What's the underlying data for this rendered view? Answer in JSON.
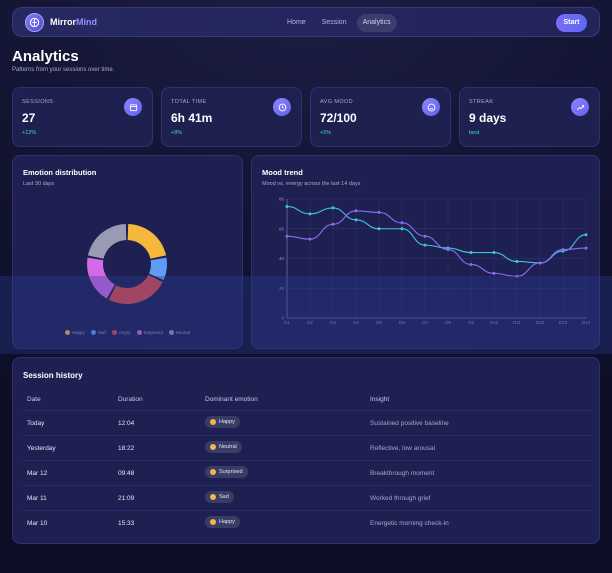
{
  "app": {
    "logo_first": "Mirror",
    "logo_second": "Mind"
  },
  "nav": {
    "items": [
      "Home",
      "Session",
      "Analytics"
    ],
    "active": "Analytics",
    "start_label": "Start"
  },
  "page": {
    "title": "Analytics",
    "subtitle": "Patterns from your sessions over time."
  },
  "stats": [
    {
      "label": "SESSIONS",
      "value": "27",
      "delta": "+12%",
      "icon": "calendar-icon"
    },
    {
      "label": "TOTAL TIME",
      "value": "6h 41m",
      "delta": "+8%",
      "icon": "clock-icon"
    },
    {
      "label": "AVG MOOD",
      "value": "72/100",
      "delta": "+5%",
      "icon": "smile-icon"
    },
    {
      "label": "STREAK",
      "value": "9 days",
      "delta": "best",
      "icon": "trend-icon"
    }
  ],
  "emotion_card": {
    "title": "Emotion distribution",
    "subtitle": "Last 30 days"
  },
  "mood_card": {
    "title": "Mood trend",
    "subtitle": "Mood vs. energy across the last 14 days"
  },
  "chart_data": [
    {
      "type": "pie",
      "title": "Emotion distribution",
      "categories": [
        "Happy",
        "Sad",
        "Angry",
        "Surprised",
        "Neutral"
      ],
      "values": [
        22,
        10,
        26,
        20,
        22
      ],
      "colors": [
        "#f5b83d",
        "#5f9cf5",
        "#e24a4a",
        "#d36be8",
        "#9a9bb3"
      ],
      "donut": true,
      "legend_position": "bottom"
    },
    {
      "type": "line",
      "title": "Mood trend",
      "x": [
        "D1",
        "D2",
        "D3",
        "D4",
        "D5",
        "D6",
        "D7",
        "D8",
        "D9",
        "D10",
        "D11",
        "D12",
        "D13",
        "D14"
      ],
      "ylim": [
        0,
        80
      ],
      "yticks": [
        0,
        20,
        40,
        60,
        80
      ],
      "grid": true,
      "series": [
        {
          "values": [
            75,
            70,
            74,
            66,
            60,
            60,
            49,
            47,
            44,
            44,
            38,
            37,
            45,
            56
          ],
          "color": "#3fc6d8"
        },
        {
          "values": [
            55,
            53,
            63,
            72,
            71,
            64,
            55,
            46,
            36,
            30,
            28,
            37,
            46,
            47
          ],
          "color": "#8c6cf0"
        }
      ]
    }
  ],
  "history": {
    "title": "Session history",
    "headers": [
      "Date",
      "Duration",
      "Dominant emotion",
      "Insight"
    ],
    "rows": [
      {
        "date": "Today",
        "duration": "12:04",
        "emotion": "Happy",
        "insight": "Sustained positive baseline"
      },
      {
        "date": "Yesterday",
        "duration": "18:22",
        "emotion": "Neutral",
        "insight": "Reflective, low arousal"
      },
      {
        "date": "Mar 12",
        "duration": "09:48",
        "emotion": "Surprised",
        "insight": "Breakthrough moment"
      },
      {
        "date": "Mar 11",
        "duration": "21:09",
        "emotion": "Sad",
        "insight": "Worked through grief"
      },
      {
        "date": "Mar 10",
        "duration": "15:33",
        "emotion": "Happy",
        "insight": "Energetic morning check-in"
      }
    ]
  }
}
